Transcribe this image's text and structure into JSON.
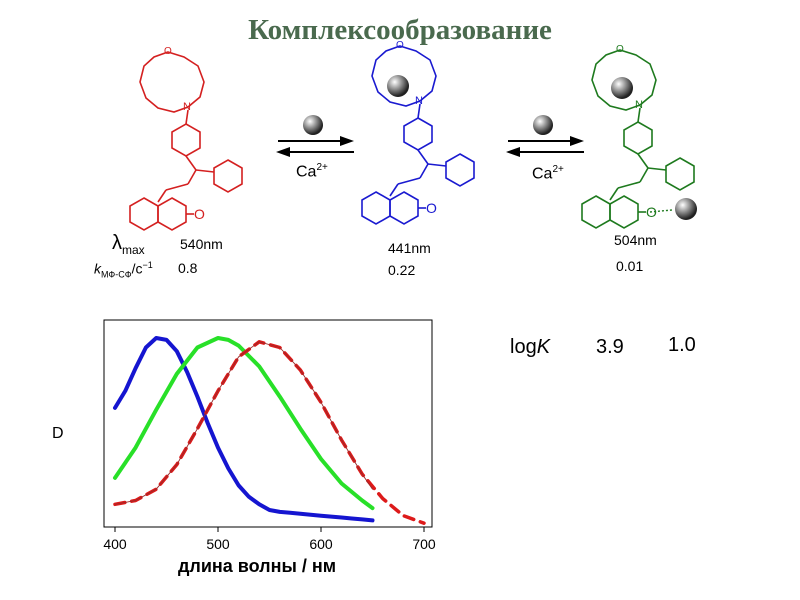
{
  "title": "Комплексообразование",
  "complexes": [
    {
      "lambda_value": "540nm",
      "k_value": "0.8"
    },
    {
      "lambda_value": "441nm",
      "k_value": "0.22"
    },
    {
      "lambda_value": "504nm",
      "k_value": "0.01"
    }
  ],
  "labels": {
    "lambda_symbol": "λ",
    "lambda_sub": "max",
    "k_symbol": "k",
    "k_sub": "МФ-СФ",
    "k_unit": "/с",
    "k_unit_sup": "−1",
    "carbonyl_o": "O",
    "amine_n": "N",
    "ring_o": "O"
  },
  "arrows": [
    {
      "ion": "Ca",
      "charge": "2+"
    },
    {
      "ion": "Ca",
      "charge": "2+"
    }
  ],
  "logk": {
    "label": "log",
    "label_italic": "K",
    "values": [
      "3.9",
      "1.0"
    ]
  },
  "colors": {
    "free": "#d42020",
    "complex1": "#1a1ad0",
    "complex2": "#1e7a1e",
    "curve_blue": "#1515d0",
    "curve_green": "#28e028",
    "curve_red": "#dd1a1a",
    "axis": "#000000"
  },
  "chart_data": {
    "type": "line",
    "xlabel": "длина волны / нм",
    "ylabel": "D",
    "xlim": [
      400,
      700
    ],
    "x_ticks": [
      400,
      500,
      600,
      700
    ],
    "series": [
      {
        "color": "blue",
        "style": "solid",
        "x": [
          400,
          410,
          420,
          430,
          440,
          450,
          460,
          470,
          480,
          490,
          500,
          510,
          520,
          530,
          540,
          550,
          560,
          570,
          580,
          590,
          600,
          610,
          620,
          630,
          640,
          650
        ],
        "y": [
          0.63,
          0.72,
          0.84,
          0.95,
          1.0,
          0.99,
          0.93,
          0.82,
          0.69,
          0.55,
          0.42,
          0.31,
          0.22,
          0.16,
          0.12,
          0.09,
          0.08,
          0.075,
          0.07,
          0.065,
          0.06,
          0.055,
          0.05,
          0.045,
          0.04,
          0.035
        ]
      },
      {
        "color": "green",
        "style": "solid",
        "x": [
          400,
          420,
          440,
          460,
          480,
          500,
          510,
          520,
          540,
          560,
          580,
          600,
          620,
          640,
          650
        ],
        "y": [
          0.26,
          0.42,
          0.62,
          0.81,
          0.95,
          1.0,
          0.99,
          0.96,
          0.85,
          0.69,
          0.52,
          0.36,
          0.23,
          0.14,
          0.1
        ]
      },
      {
        "color": "red",
        "style": "dashed",
        "x": [
          400,
          420,
          440,
          460,
          480,
          500,
          520,
          540,
          560,
          580,
          600,
          620,
          640,
          660,
          680,
          700
        ],
        "y": [
          0.12,
          0.14,
          0.2,
          0.33,
          0.52,
          0.72,
          0.9,
          0.98,
          0.95,
          0.83,
          0.66,
          0.46,
          0.28,
          0.15,
          0.06,
          0.02
        ]
      },
      {
        "color": "red",
        "style": "thin",
        "x": [
          400,
          420,
          440,
          460,
          480,
          500,
          520,
          540,
          560,
          580,
          600,
          620,
          640,
          650
        ],
        "y": [
          0.12,
          0.14,
          0.2,
          0.33,
          0.52,
          0.72,
          0.9,
          0.98,
          0.95,
          0.83,
          0.66,
          0.46,
          0.28,
          0.2
        ]
      }
    ]
  }
}
